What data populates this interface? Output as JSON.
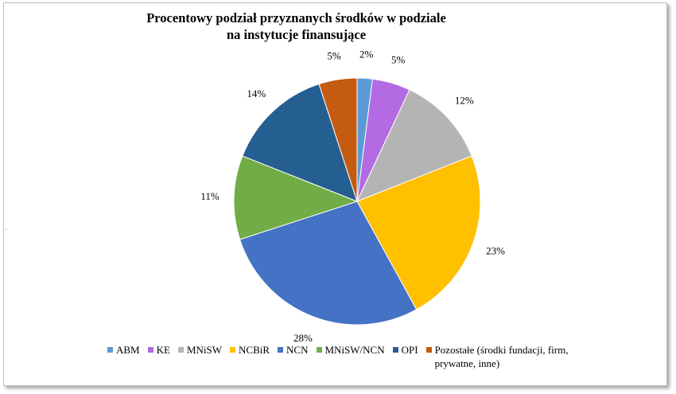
{
  "chart_data": {
    "type": "pie",
    "title": [
      "Procentowy podział przyznanych środków w podziale",
      "na instytucje finansujące"
    ],
    "categories": [
      "ABM",
      "KE",
      "MNiSW",
      "NCBiR",
      "NCN",
      "MNiSW/NCN",
      "OPI",
      "Pozostałe (środki fundacji, firm, prywatne, inne)"
    ],
    "values": [
      2,
      5,
      12,
      23,
      28,
      11,
      14,
      5
    ],
    "value_labels": [
      "2%",
      "5%",
      "12%",
      "23%",
      "28%",
      "11%",
      "14%",
      "5%"
    ],
    "colors": [
      "#5b9bd5",
      "#b36ae2",
      "#b4b4b4",
      "#ffc000",
      "#4472c4",
      "#70ad47",
      "#255e91",
      "#c55a11"
    ],
    "legend_position": "bottom",
    "start_angle_deg": 0,
    "direction": "clockwise"
  }
}
